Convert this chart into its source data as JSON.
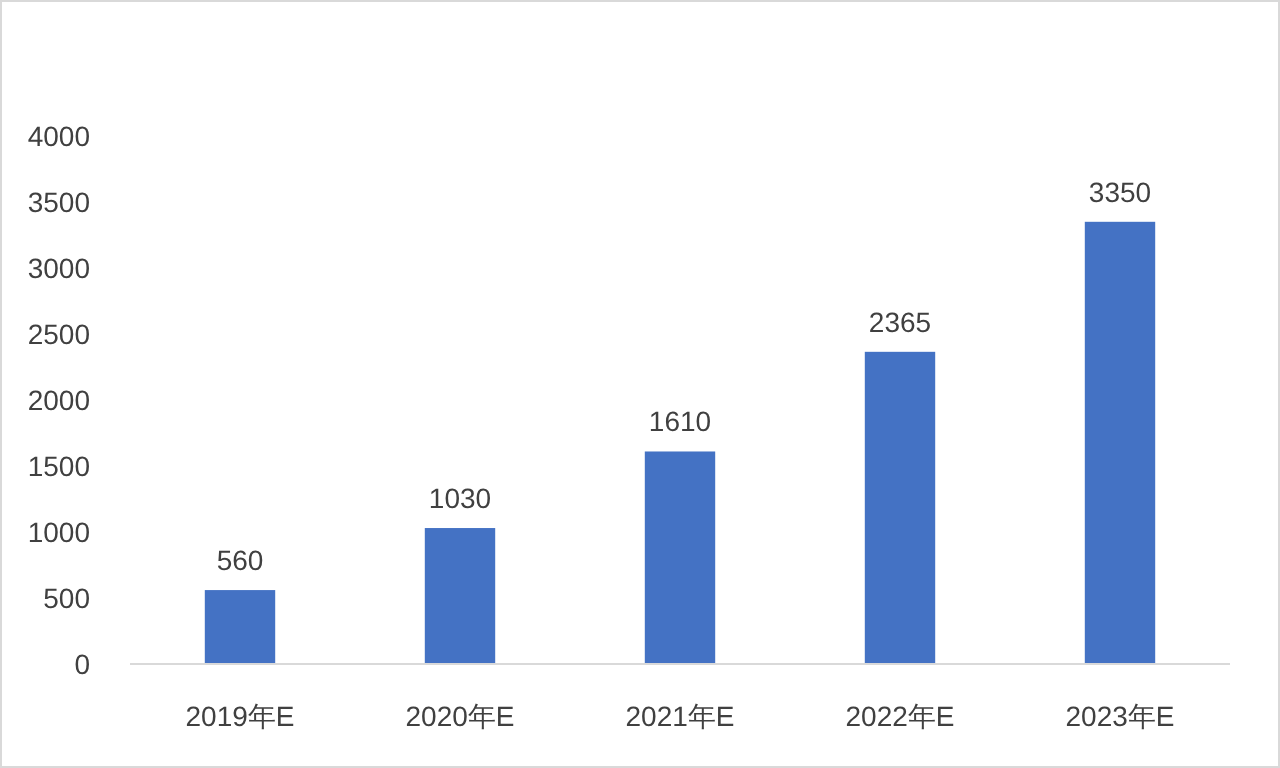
{
  "chart_data": {
    "type": "bar",
    "categories": [
      "2019年E",
      "2020年E",
      "2021年E",
      "2022年E",
      "2023年E"
    ],
    "values": [
      560,
      1030,
      1610,
      2365,
      3350
    ],
    "color": "#4472c4",
    "ylim": [
      0,
      4000
    ],
    "yticks": [
      0,
      500,
      1000,
      1500,
      2000,
      2500,
      3000,
      3500,
      4000
    ],
    "data_labels": true,
    "grid": false
  }
}
